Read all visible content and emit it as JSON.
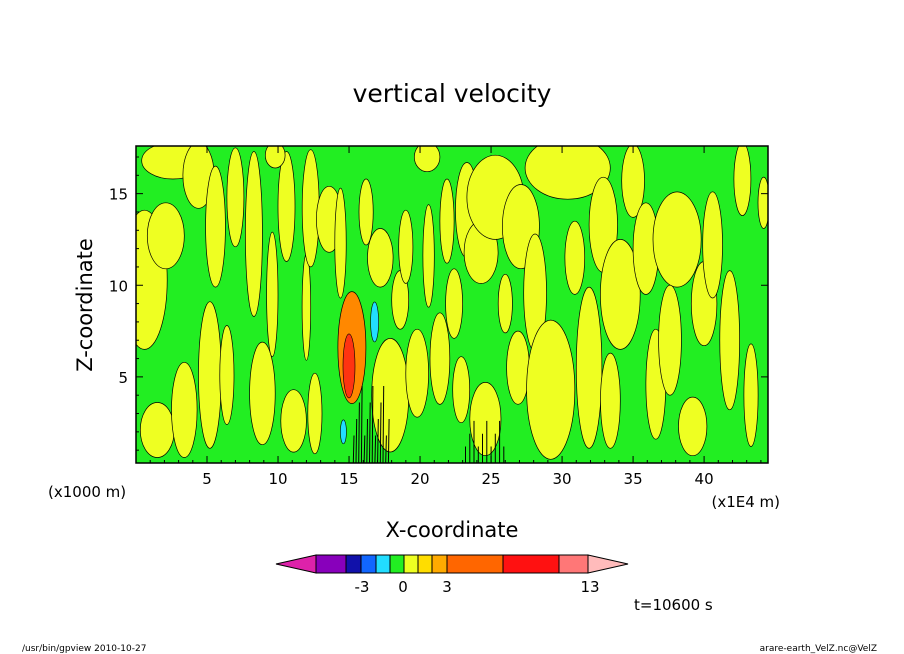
{
  "chart_data": {
    "type": "heatmap",
    "title": "vertical velocity",
    "xlabel": "X-coordinate",
    "ylabel": "Z-coordinate",
    "x_unit_left": "(x1000 m)",
    "x_unit_right": "(x1E4 m)",
    "xlim": [
      0,
      44.5
    ],
    "ylim": [
      0.3,
      17.6
    ],
    "x_ticks": [
      5,
      10,
      15,
      20,
      25,
      30,
      35,
      40
    ],
    "y_ticks": [
      5,
      10,
      15
    ],
    "colorbar": {
      "labels": [
        {
          "text": "-3",
          "level": -3
        },
        {
          "text": "0",
          "level": 0
        },
        {
          "text": "3",
          "level": 3
        },
        {
          "text": "13",
          "level": 13
        }
      ],
      "bins": [
        {
          "color": "#dd22aa",
          "arrow": "left"
        },
        {
          "color": "#8800bb"
        },
        {
          "color": "#1111aa"
        },
        {
          "color": "#1166ff"
        },
        {
          "color": "#22ddff"
        },
        {
          "color": "#22ee22"
        },
        {
          "color": "#eeff22"
        },
        {
          "color": "#ffdd00"
        },
        {
          "color": "#ffaa00"
        },
        {
          "color": "#ff6600"
        },
        {
          "color": "#ff1111"
        },
        {
          "color": "#ff7777"
        },
        {
          "color": "#ffbbbb",
          "arrow": "right"
        }
      ]
    },
    "colors": {
      "positive": "#eeff22",
      "negative": "#22ee22",
      "strong_up": "#ff8800",
      "strong_down": "#22ddff"
    },
    "time_label": "t=10600 s"
  },
  "footer": {
    "left": "/usr/bin/gpview   2010-10-27",
    "right": "arare-earth_VelZ.nc@VelZ"
  }
}
